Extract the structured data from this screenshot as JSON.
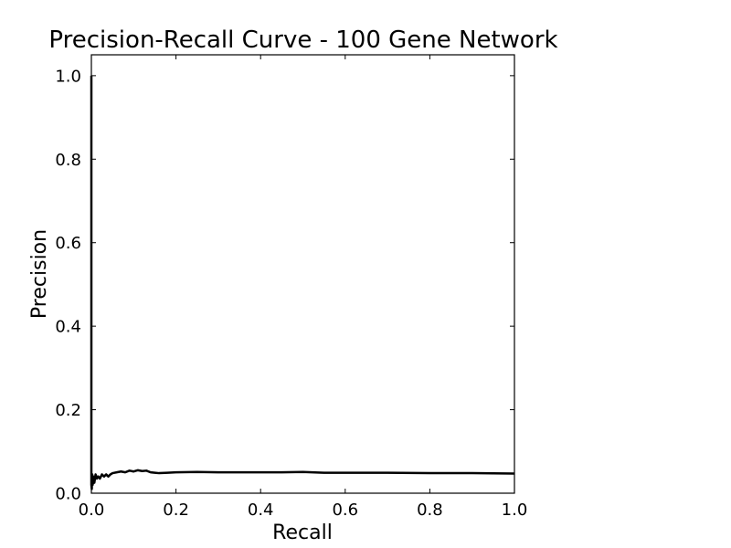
{
  "chart_data": {
    "type": "line",
    "title": "Precision-Recall Curve - 100 Gene Network",
    "xlabel": "Recall",
    "ylabel": "Precision",
    "xlim": [
      0.0,
      1.0
    ],
    "ylim": [
      0.0,
      1.05
    ],
    "xticks": [
      "0.0",
      "0.2",
      "0.4",
      "0.6",
      "0.8",
      "1.0"
    ],
    "yticks": [
      "0.0",
      "0.2",
      "0.4",
      "0.6",
      "0.8",
      "1.0"
    ],
    "grid": false,
    "legend": "none",
    "series": [
      {
        "color": "#000000",
        "x": [
          0.0,
          0.0,
          0.001,
          0.002,
          0.003,
          0.005,
          0.007,
          0.01,
          0.013,
          0.016,
          0.02,
          0.025,
          0.03,
          0.035,
          0.04,
          0.045,
          0.05,
          0.06,
          0.07,
          0.08,
          0.09,
          0.1,
          0.11,
          0.12,
          0.13,
          0.14,
          0.15,
          0.16,
          0.18,
          0.2,
          0.25,
          0.3,
          0.35,
          0.4,
          0.45,
          0.5,
          0.55,
          0.6,
          0.7,
          0.8,
          0.9,
          1.0
        ],
        "y": [
          1.0,
          0.02,
          0.01,
          0.045,
          0.02,
          0.04,
          0.025,
          0.045,
          0.035,
          0.04,
          0.035,
          0.045,
          0.04,
          0.045,
          0.04,
          0.045,
          0.048,
          0.05,
          0.052,
          0.05,
          0.054,
          0.052,
          0.055,
          0.053,
          0.054,
          0.05,
          0.049,
          0.048,
          0.049,
          0.05,
          0.051,
          0.05,
          0.05,
          0.05,
          0.05,
          0.051,
          0.049,
          0.049,
          0.049,
          0.048,
          0.048,
          0.047
        ]
      }
    ]
  }
}
